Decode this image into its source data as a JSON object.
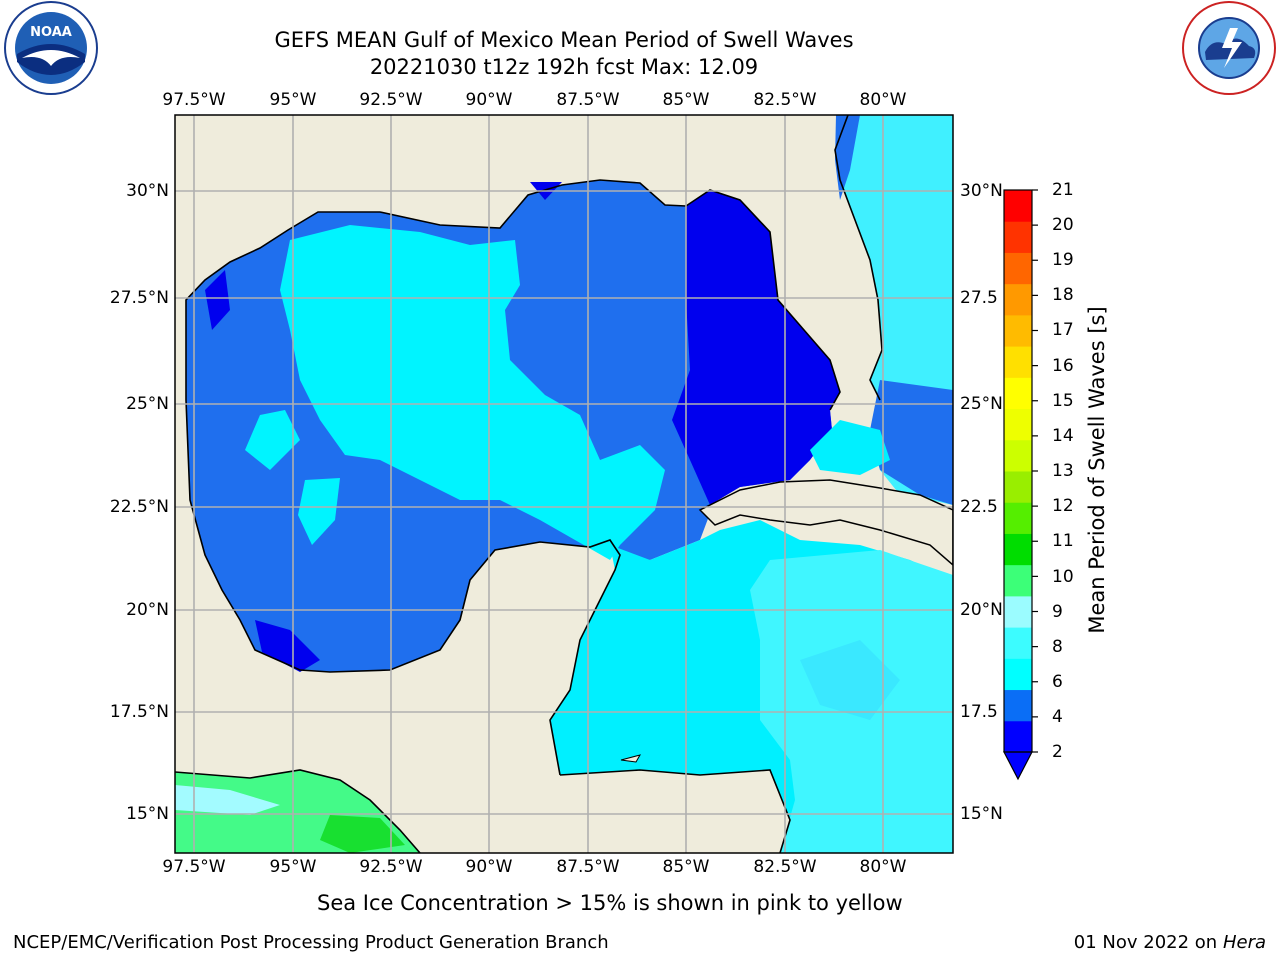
{
  "header": {
    "title_line1": "GEFS MEAN Gulf of Mexico Mean Period of Swell Waves",
    "title_line2": "20221030 t12z 192h fcst   Max: 12.09"
  },
  "logos": {
    "left": "noaa-logo",
    "right": "nws-logo"
  },
  "map": {
    "lon_ticks": [
      "97.5°W",
      "95°W",
      "92.5°W",
      "90°W",
      "87.5°W",
      "85°W",
      "82.5°W",
      "80°W"
    ],
    "lat_ticks_left": [
      "30°N",
      "27.5°N",
      "25°N",
      "22.5°N",
      "20°N",
      "17.5°N",
      "15°N"
    ],
    "lat_ticks_right": [
      "30°N",
      "27.5",
      "25°N",
      "22.5",
      "20°N",
      "17.5",
      "15°N"
    ],
    "land_color": "#efecdc",
    "grid_color": "#b0b0b0"
  },
  "colorbar": {
    "label": "Mean Period of Swell Waves [s]",
    "ticks": [
      "21",
      "20",
      "19",
      "18",
      "17",
      "16",
      "15",
      "14",
      "13",
      "12",
      "11",
      "10",
      "9",
      "8",
      "6",
      "4",
      "2"
    ],
    "colors_bottom_to_top": [
      "#0000ff",
      "#0a6ef6",
      "#00ffff",
      "#3cfcff",
      "#9bfcff",
      "#3cff78",
      "#00dd00",
      "#55ee00",
      "#99ee00",
      "#ccff00",
      "#eeff00",
      "#ffff00",
      "#ffe000",
      "#ffbb00",
      "#ff9900",
      "#ff6600",
      "#ff3300",
      "#ff0000"
    ]
  },
  "footer": {
    "note": "Sea Ice Concentration > 15% is shown in pink to yellow",
    "credit": "NCEP/EMC/Verification Post Processing Product Generation Branch",
    "date": "01 Nov 2022 on",
    "host": "Hera"
  }
}
